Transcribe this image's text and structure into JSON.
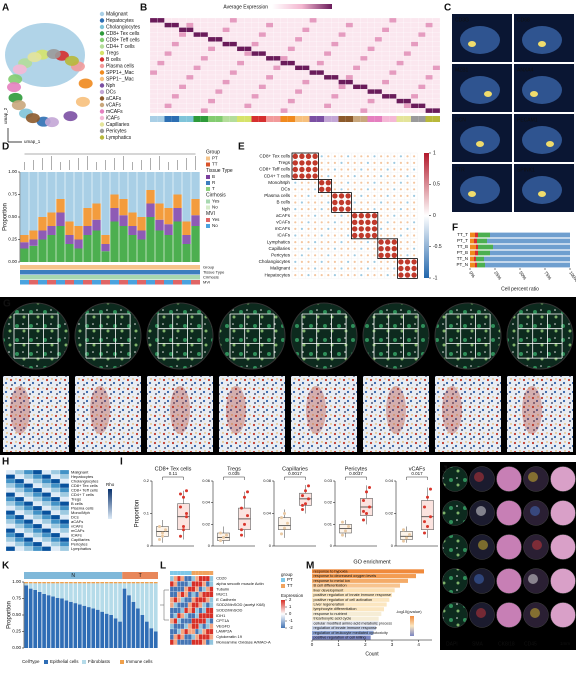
{
  "panel_labels": [
    "A",
    "B",
    "C",
    "D",
    "E",
    "F",
    "G",
    "H",
    "I",
    "J",
    "K",
    "L",
    "M"
  ],
  "umap": {
    "x_label": "umap_1",
    "y_label": "umap_2",
    "legend": [
      {
        "name": "Malignant",
        "color": "#a9cfe6"
      },
      {
        "name": "Hepatocytes",
        "color": "#2d6fb3"
      },
      {
        "name": "Cholangiocytes",
        "color": "#7fc4d9"
      },
      {
        "name": "CD8+ Tex cells",
        "color": "#2e9a3a"
      },
      {
        "name": "CD8+ Teff cells",
        "color": "#83cc70"
      },
      {
        "name": "CD4+ T cells",
        "color": "#b4dd9a"
      },
      {
        "name": "Tregs",
        "color": "#d6e36a"
      },
      {
        "name": "B cells",
        "color": "#d62f2f"
      },
      {
        "name": "Plasma cells",
        "color": "#f29a9a"
      },
      {
        "name": "SPP1+_Mac",
        "color": "#f08a1e"
      },
      {
        "name": "SPP1−_Mac",
        "color": "#f7c07c"
      },
      {
        "name": "Nph",
        "color": "#7b4fa3"
      },
      {
        "name": "DCs",
        "color": "#c3a6d6"
      },
      {
        "name": "aCAFs",
        "color": "#8c5a2b"
      },
      {
        "name": "vCAFs",
        "color": "#c9a77c"
      },
      {
        "name": "mCAFs",
        "color": "#e57fbf"
      },
      {
        "name": "iCAFs",
        "color": "#f5b8d6"
      },
      {
        "name": "Capillaries",
        "color": "#e4e49a"
      },
      {
        "name": "Pericytes",
        "color": "#9a9a9a"
      },
      {
        "name": "Lymphatics",
        "color": "#b8b83a"
      }
    ]
  },
  "expression_heatmap": {
    "title": "Average Expression"
  },
  "feature_plots": [
    "CD3G",
    "CD68",
    "MZB1",
    "ANXA4",
    "DCN",
    "PECAM1",
    "TTR",
    "SPINK1"
  ],
  "corr_matrix": {
    "labels": [
      "CD8+ Tex cells",
      "Tregs",
      "CD8+ Teff cells",
      "CD4+ T cells",
      "Mono/Mph",
      "DCs",
      "Plasma cells",
      "B cells",
      "Nph",
      "aCAFs",
      "vCAFs",
      "mCAFs",
      "iCAFs",
      "Lymphatics",
      "Capillaries",
      "Pericytes",
      "Cholangiocytes",
      "Malignant",
      "Hepatocytes"
    ],
    "clim": [
      -1,
      1
    ],
    "colorbar_ticks": [
      1,
      0.5,
      0,
      -0.5,
      -1
    ]
  },
  "rho_heatmap": {
    "title": "Rho",
    "labels": [
      "Malignant",
      "Hepatocytes",
      "Cholangiocytes",
      "CD8+ Tex cells",
      "CD8+ Teff cells",
      "CD4+ T cells",
      "Tregs",
      "B cells",
      "Plasma cells",
      "Mono/Mph",
      "DCs",
      "aCAFs",
      "vCAFs",
      "mCAFs",
      "iCAFs",
      "Capillaries",
      "Pericytes",
      "Lymphatics"
    ]
  },
  "ihc": {
    "channels": [
      {
        "label": "DAPI",
        "color": "#4a7bd8"
      },
      {
        "label": "SMA",
        "color": "#e23b3b"
      },
      {
        "label": "CK8/18",
        "color": "#ffffff"
      },
      {
        "label": "CD45",
        "color": "#f2d12e"
      }
    ],
    "scale": "1mm"
  },
  "protein_heatmap": {
    "genes": [
      "CD20",
      "alpha smooth muscle Actin",
      "Tubulin",
      "MUC1",
      "E Cadherin",
      "SOD2/MnSOD (acetyl K68)",
      "SOD2/MnSOD",
      "IDH1",
      "CPT1A",
      "VEGFD",
      "LAMP2A",
      "Cytokeratin 19",
      "Monoamine Oxidase A/MAO-A"
    ],
    "group_title": "group",
    "groups": [
      {
        "label": "PT",
        "color": "#7fc8e8"
      },
      {
        "label": "TT",
        "color": "#f0a35e"
      }
    ],
    "expression_title": "Expression",
    "expression_lim": [
      -2,
      2
    ],
    "expression_ticks": [
      2,
      1,
      0,
      -1,
      -2
    ]
  },
  "chart_data": [
    {
      "type": "stacked_bar",
      "y_label": "Proportion",
      "ylim": [
        0,
        1
      ],
      "yticks": [
        {
          "value": 0,
          "label": "0.00"
        },
        0.25,
        {
          "value": 0.5,
          "label": "0.50"
        },
        0.75,
        {
          "value": 1,
          "label": "1.00"
        }
      ],
      "series": [
        {
          "color": "#4caf50",
          "values": [
            0.15,
            0.18,
            0.25,
            0.3,
            0.4,
            0.2,
            0.15,
            0.3,
            0.35,
            0.12,
            0.45,
            0.4,
            0.3,
            0.25,
            0.5,
            0.35,
            0.3,
            0.45,
            0.2,
            0.4
          ]
        },
        {
          "color": "#8e5bb5",
          "values": [
            0.07,
            0.07,
            0.1,
            0.1,
            0.15,
            0.1,
            0.1,
            0.1,
            0.12,
            0.08,
            0.15,
            0.12,
            0.1,
            0.1,
            0.15,
            0.12,
            0.12,
            0.15,
            0.1,
            0.12
          ]
        },
        {
          "color": "#f39c3d",
          "values": [
            0.08,
            0.1,
            0.15,
            0.15,
            0.15,
            0.15,
            0.15,
            0.2,
            0.18,
            0.1,
            0.15,
            0.18,
            0.15,
            0.15,
            0.15,
            0.18,
            0.18,
            0.15,
            0.15,
            0.18
          ]
        },
        {
          "color": "#a9cfe6",
          "values": [
            0.7,
            0.65,
            0.5,
            0.45,
            0.3,
            0.55,
            0.6,
            0.4,
            0.35,
            0.7,
            0.25,
            0.3,
            0.45,
            0.5,
            0.2,
            0.35,
            0.4,
            0.25,
            0.55,
            0.3
          ]
        }
      ],
      "legends": [
        {
          "title": "Group",
          "items": [
            "PT",
            "TT"
          ],
          "colors": [
            "#f6c48b",
            "#d9532b"
          ]
        },
        {
          "title": "Tissue Type",
          "items": [
            "B",
            "R",
            "T"
          ],
          "colors": [
            "#7b3f9e",
            "#3d7ebf",
            "#8fd17e"
          ]
        },
        {
          "title": "Cirrhosis",
          "items": [
            "Yes",
            "No"
          ],
          "colors": [
            "#a8d8b0",
            "#d6ecc9"
          ]
        },
        {
          "title": "MVI",
          "items": [
            "Yes",
            "No"
          ],
          "colors": [
            "#e06666",
            "#4aa3df"
          ]
        }
      ],
      "track_labels": [
        "Group",
        "Tissue Type",
        "Cirrhosis",
        "MVI"
      ]
    },
    {
      "type": "stacked_barh",
      "categories": [
        "TT_T",
        "PT_T",
        "TT_B",
        "PT_B",
        "TT_N",
        "PT_N"
      ],
      "x_label": "Cell percent ratio",
      "xlim": [
        0,
        1
      ],
      "xticks": [
        {
          "value": 0,
          "label": "0%"
        },
        {
          "value": 0.25,
          "label": "25%"
        },
        {
          "value": 0.5,
          "label": "50%"
        },
        {
          "value": 0.75,
          "label": "75%"
        },
        {
          "value": 1,
          "label": "100%"
        }
      ],
      "series": [
        {
          "color": "#f08a1e",
          "values": [
            0.05,
            0.04,
            0.06,
            0.05,
            0.04,
            0.05
          ]
        },
        {
          "color": "#d62f2f",
          "values": [
            0.03,
            0.03,
            0.02,
            0.03,
            0.02,
            0.02
          ]
        },
        {
          "color": "#4caf50",
          "values": [
            0.12,
            0.1,
            0.15,
            0.12,
            0.08,
            0.08
          ]
        },
        {
          "color": "#6f9fcf",
          "values": [
            0.8,
            0.83,
            0.77,
            0.8,
            0.86,
            0.85
          ]
        }
      ]
    },
    {
      "type": "box",
      "title": "CD8+ Tex cells",
      "p_value": 0.11,
      "y_label": "Proportion",
      "ylim": [
        0,
        0.2
      ],
      "yticks": [
        0,
        0.1,
        0.2
      ],
      "groups": [
        {
          "color": "#e9c9a3",
          "low": 0.01,
          "q1": 0.03,
          "median": 0.045,
          "q3": 0.06,
          "high": 0.08,
          "points": [
            0.02,
            0.04,
            0.05,
            0.06,
            0.03
          ]
        },
        {
          "color": "#d9352b",
          "low": 0.02,
          "q1": 0.05,
          "median": 0.09,
          "q3": 0.13,
          "high": 0.17,
          "points": [
            0.03,
            0.06,
            0.09,
            0.12,
            0.15,
            0.17,
            0.16,
            0.05,
            0.1
          ]
        }
      ]
    },
    {
      "type": "box",
      "title": "Tregs",
      "p_value": 0.035,
      "ylim": [
        0,
        0.06
      ],
      "yticks": [
        0,
        0.02,
        0.04,
        0.06
      ],
      "groups": [
        {
          "color": "#e9c9a3",
          "low": 0.002,
          "q1": 0.005,
          "median": 0.008,
          "q3": 0.012,
          "high": 0.018,
          "points": [
            0.005,
            0.008,
            0.01,
            0.012
          ]
        },
        {
          "color": "#d9352b",
          "low": 0.008,
          "q1": 0.015,
          "median": 0.025,
          "q3": 0.035,
          "high": 0.05,
          "points": [
            0.01,
            0.02,
            0.028,
            0.035,
            0.045,
            0.05,
            0.015
          ]
        }
      ]
    },
    {
      "type": "box",
      "title": "Capillaries",
      "p_value": 0.0017,
      "ylim": [
        0,
        0.08
      ],
      "yticks": [
        0,
        0.04,
        0.08
      ],
      "groups": [
        {
          "color": "#e9c9a3",
          "low": 0.01,
          "q1": 0.02,
          "median": 0.025,
          "q3": 0.035,
          "high": 0.045,
          "points": [
            0.015,
            0.022,
            0.028,
            0.035,
            0.04
          ]
        },
        {
          "color": "#d9352b",
          "low": 0.04,
          "q1": 0.05,
          "median": 0.058,
          "q3": 0.065,
          "high": 0.075,
          "points": [
            0.045,
            0.052,
            0.058,
            0.062,
            0.068,
            0.074,
            0.05
          ]
        }
      ]
    },
    {
      "type": "box",
      "title": "Pericytes",
      "p_value": 0.0037,
      "ylim": [
        0,
        0.03
      ],
      "yticks": [
        0,
        0.01,
        0.02,
        0.03
      ],
      "groups": [
        {
          "color": "#e9c9a3",
          "low": 0.004,
          "q1": 0.006,
          "median": 0.008,
          "q3": 0.01,
          "high": 0.012,
          "points": [
            0.005,
            0.007,
            0.009,
            0.011
          ]
        },
        {
          "color": "#d9352b",
          "low": 0.01,
          "q1": 0.014,
          "median": 0.018,
          "q3": 0.022,
          "high": 0.028,
          "points": [
            0.012,
            0.015,
            0.018,
            0.021,
            0.025,
            0.027,
            0.016
          ]
        }
      ]
    },
    {
      "type": "box",
      "title": "vCAFs",
      "p_value": 0.017,
      "ylim": [
        0,
        0.04
      ],
      "yticks": [
        0,
        0.02,
        0.04
      ],
      "groups": [
        {
          "color": "#e9c9a3",
          "low": 0.002,
          "q1": 0.004,
          "median": 0.006,
          "q3": 0.009,
          "high": 0.012,
          "points": [
            0.003,
            0.005,
            0.007,
            0.01
          ]
        },
        {
          "color": "#d9352b",
          "low": 0.005,
          "q1": 0.01,
          "median": 0.018,
          "q3": 0.028,
          "high": 0.036,
          "points": [
            0.008,
            0.012,
            0.018,
            0.024,
            0.03,
            0.035,
            0.015
          ]
        }
      ]
    },
    {
      "type": "faceted_stacked_bar",
      "y_label": "Proportion",
      "ylim": [
        0,
        1
      ],
      "yticks": [
        {
          "value": 0,
          "label": "0.00"
        },
        0.25,
        {
          "value": 0.5,
          "label": "0.50"
        },
        0.75,
        {
          "value": 1,
          "label": "1.00"
        }
      ],
      "legend_title": "CellType",
      "series": [
        {
          "name": "Epithelial cells",
          "color": "#2f6db5"
        },
        {
          "name": "Fibroblasts",
          "color": "#b5dbe9"
        },
        {
          "name": "Immune cells",
          "color": "#f0a04b"
        }
      ],
      "facets": [
        {
          "label": "N",
          "color": "#7fb8d9",
          "values": [
            [
              0.95,
              0.9,
              0.88,
              0.85,
              0.82,
              0.8,
              0.78,
              0.76,
              0.75,
              0.72,
              0.7,
              0.68,
              0.66,
              0.64,
              0.62,
              0.6,
              0.58,
              0.55,
              0.52,
              0.5,
              0.45,
              0.4
            ],
            [
              0.03,
              0.08,
              0.1,
              0.13,
              0.16,
              0.18,
              0.2,
              0.22,
              0.23,
              0.26,
              0.28,
              0.3,
              0.32,
              0.34,
              0.36,
              0.38,
              0.4,
              0.43,
              0.46,
              0.48,
              0.53,
              0.58
            ],
            [
              0.02,
              0.02,
              0.02,
              0.02,
              0.02,
              0.02,
              0.02,
              0.02,
              0.02,
              0.02,
              0.02,
              0.02,
              0.02,
              0.02,
              0.02,
              0.02,
              0.02,
              0.02,
              0.02,
              0.02,
              0.02,
              0.02
            ]
          ]
        },
        {
          "label": "T",
          "color": "#e8875a",
          "values": [
            [
              0.9,
              0.8,
              0.7,
              0.6,
              0.5,
              0.4,
              0.3,
              0.25
            ],
            [
              0.08,
              0.18,
              0.28,
              0.38,
              0.48,
              0.58,
              0.68,
              0.73
            ],
            [
              0.02,
              0.02,
              0.02,
              0.02,
              0.02,
              0.02,
              0.02,
              0.02
            ]
          ]
        }
      ]
    },
    {
      "type": "barh",
      "title": "GO enrichment",
      "categories": [
        "response to hypoxia",
        "response to decreased oxygen levels",
        "response to metal ion",
        "B cell differentiation",
        "liver development",
        "positive regulation of innate immune response",
        "positive regulation of cell activation",
        "Liver regeneration",
        "lymphocyte differentiation",
        "response to nutrient",
        "tricarboxylic acid cycle",
        "cellular modified amino acid metabolic process",
        "regulation of innate immune response",
        "regulation of leukocyte mediated cytotoxicity",
        "positive regulation of cell killing"
      ],
      "values": [
        4.2,
        3.9,
        3.6,
        3.3,
        3.1,
        3,
        2.9,
        2.8,
        2.7,
        2.6,
        2.5,
        2.5,
        2.4,
        2.3,
        2.2
      ],
      "colors": [
        "#f08a3c",
        "#f39c52",
        "#f4ab68",
        "#f7c48f",
        "#fbe0b4",
        "#fbe6c0",
        "#fbe6c0",
        "#fbe6c0",
        "#fbe6c0",
        "#f6edd6",
        "#f6edd6",
        "#e5e7ef",
        "#c9d3ea",
        "#8fa6d6",
        "#7b86c2"
      ],
      "x_label": "Count",
      "xlim": [
        0,
        4.5
      ],
      "xticks": [
        0,
        1,
        2,
        3,
        4
      ],
      "colorbar_title": "-log10(pvalue)"
    }
  ]
}
